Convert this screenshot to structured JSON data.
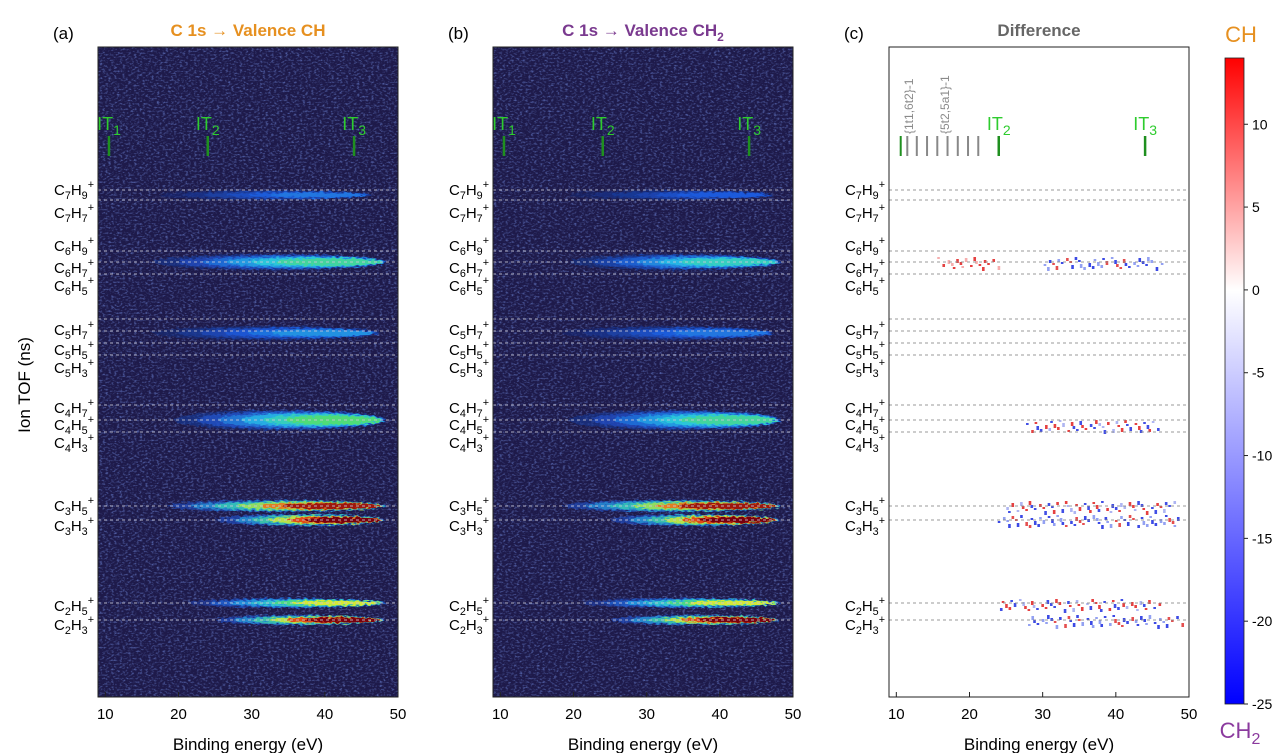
{
  "figure": {
    "ylabel": "Ion TOF (ns)",
    "colorbar": {
      "top_label": "CH",
      "bottom_label": "CH2",
      "top_color": "#e69020",
      "bottom_color": "#8b3a9e",
      "ticks": [
        10,
        5,
        0,
        -5,
        -10,
        -15,
        -20,
        -25
      ],
      "range": [
        -25,
        14
      ]
    }
  },
  "chart_data": [
    {
      "type": "heatmap",
      "panel_label": "(a)",
      "title_prefix": "C 1s → Valence ",
      "title_species": "CH",
      "title_subscript": "",
      "title_color": "#e69020",
      "xlabel": "Binding energy (eV)",
      "xlim": [
        9,
        50
      ],
      "xticks": [
        10,
        20,
        30,
        40,
        50
      ],
      "colormap": "jet-like (dark navy → blue → cyan → green → yellow → red)",
      "ion_labels": [
        "C7H9+",
        "C7H7+",
        "C6H9+",
        "C6H7+",
        "C6H5+",
        "C5H7+",
        "C5H5+",
        "C5H3+",
        "C4H7+",
        "C4H5+",
        "C4H3+",
        "C3H5+",
        "C3H3+",
        "C2H5+",
        "C2H3+"
      ],
      "markers": [
        {
          "label": "IT",
          "sub": "1",
          "energy": 10.5
        },
        {
          "label": "IT",
          "sub": "2",
          "energy": 24
        },
        {
          "label": "IT",
          "sub": "3",
          "energy": 44
        }
      ],
      "intensity_bands": [
        {
          "ion": "C7H9+/C7H7+",
          "start": 16,
          "end": 45,
          "peak": 0.3
        },
        {
          "ion": "C6H7+",
          "start": 15,
          "end": 47,
          "peak": 0.55
        },
        {
          "ion": "C5H7+/C5H5+",
          "start": 15,
          "end": 46,
          "peak": 0.35
        },
        {
          "ion": "C4H5+",
          "start": 18,
          "end": 47,
          "peak": 0.6
        },
        {
          "ion": "C3H5+",
          "start": 17,
          "end": 47,
          "peak": 0.95
        },
        {
          "ion": "C3H3+",
          "start": 24,
          "end": 47,
          "peak": 1.0
        },
        {
          "ion": "C2H5+",
          "start": 20,
          "end": 47,
          "peak": 0.7
        },
        {
          "ion": "C2H3+",
          "start": 24,
          "end": 47,
          "peak": 1.0
        }
      ]
    },
    {
      "type": "heatmap",
      "panel_label": "(b)",
      "title_prefix": "C 1s → Valence ",
      "title_species": "CH",
      "title_subscript": "2",
      "title_color": "#7a3a8f",
      "xlabel": "Binding energy (eV)",
      "xlim": [
        9,
        50
      ],
      "xticks": [
        10,
        20,
        30,
        40,
        50
      ],
      "colormap": "jet-like (dark navy → blue → cyan → green → yellow → red)",
      "ion_labels": [
        "C7H9+",
        "C7H7+",
        "C6H9+",
        "C6H7+",
        "C6H5+",
        "C5H7+",
        "C5H5+",
        "C5H3+",
        "C4H7+",
        "C4H5+",
        "C4H3+",
        "C3H5+",
        "C3H3+",
        "C2H5+",
        "C2H3+"
      ],
      "markers": [
        {
          "label": "IT",
          "sub": "1",
          "energy": 10.5
        },
        {
          "label": "IT",
          "sub": "2",
          "energy": 24
        },
        {
          "label": "IT",
          "sub": "3",
          "energy": 44
        }
      ],
      "intensity_bands": [
        {
          "ion": "C7H9+/C7H7+",
          "start": 18,
          "end": 46,
          "peak": 0.25
        },
        {
          "ion": "C6H7+",
          "start": 18,
          "end": 47,
          "peak": 0.5
        },
        {
          "ion": "C5H7+/C5H5+",
          "start": 17,
          "end": 46,
          "peak": 0.3
        },
        {
          "ion": "C4H5+",
          "start": 18,
          "end": 47,
          "peak": 0.55
        },
        {
          "ion": "C3H5+",
          "start": 17,
          "end": 47,
          "peak": 0.95
        },
        {
          "ion": "C3H3+",
          "start": 24,
          "end": 47,
          "peak": 1.0
        },
        {
          "ion": "C2H5+",
          "start": 20,
          "end": 47,
          "peak": 0.7
        },
        {
          "ion": "C2H3+",
          "start": 24,
          "end": 47,
          "peak": 1.0
        }
      ]
    },
    {
      "type": "heatmap",
      "panel_label": "(c)",
      "title": "Difference",
      "title_color": "#666666",
      "xlabel": "Binding energy (eV)",
      "xlim": [
        9,
        50
      ],
      "xticks": [
        10,
        20,
        30,
        40,
        50
      ],
      "colormap": "diverging blue-white-red",
      "ion_labels": [
        "C7H9+",
        "C7H7+",
        "C6H9+",
        "C6H7+",
        "C6H5+",
        "C5H7+",
        "C5H5+",
        "C5H3+",
        "C4H7+",
        "C4H5+",
        "C4H3+",
        "C3H5+",
        "C3H3+",
        "C2H5+",
        "C2H3+"
      ],
      "markers": [
        {
          "label": "IT",
          "sub": "2",
          "energy": 24
        },
        {
          "label": "IT",
          "sub": "3",
          "energy": 44
        }
      ],
      "annotations": [
        "{1t1,6t2}-1",
        "{5t2,5a1}-1"
      ],
      "state_ticks_ev": [
        10.6,
        11.5,
        12.8,
        14.2,
        15.6,
        17.0,
        18.4,
        19.8,
        21.2
      ],
      "difference_features": [
        {
          "ion": "C6H7+",
          "from": 16,
          "to": 24,
          "sign": "positive"
        },
        {
          "ion": "C6H7+",
          "from": 30,
          "to": 46,
          "sign": "negative"
        },
        {
          "ion": "C4H5+",
          "from": 28,
          "to": 46,
          "sign": "mixed"
        },
        {
          "ion": "C3H5+",
          "from": 25,
          "to": 48,
          "sign": "mixed"
        },
        {
          "ion": "C3H3+",
          "from": 24,
          "to": 49,
          "sign": "negative"
        },
        {
          "ion": "C2H5+",
          "from": 24,
          "to": 46,
          "sign": "mixed"
        },
        {
          "ion": "C2H3+",
          "from": 28,
          "to": 49,
          "sign": "negative"
        }
      ]
    }
  ]
}
